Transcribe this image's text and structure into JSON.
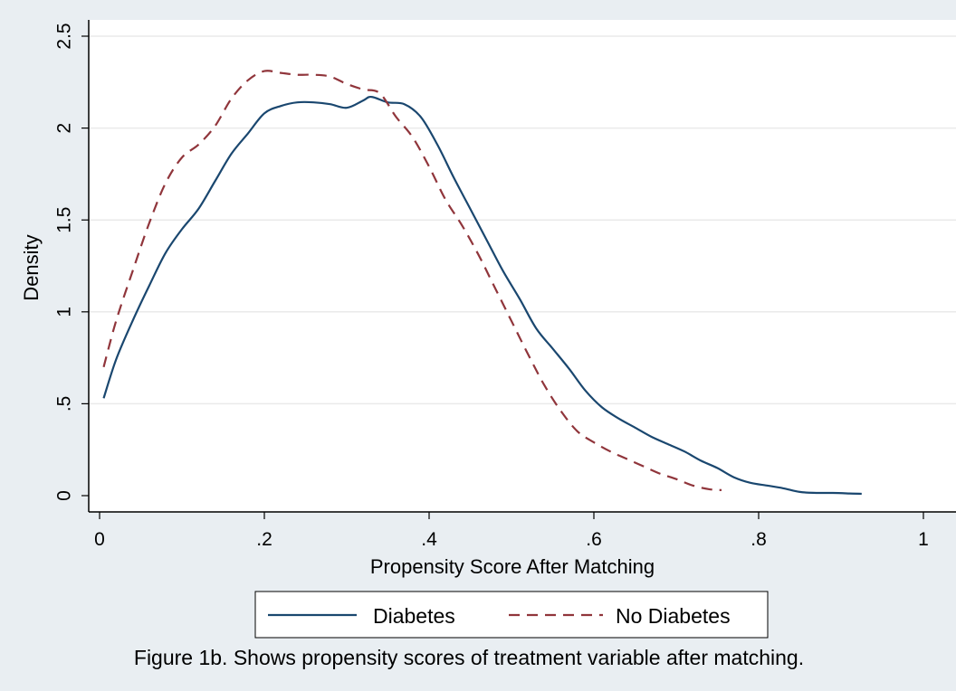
{
  "caption": "Figure 1b. Shows propensity scores of treatment variable after matching.",
  "chart_data": {
    "type": "line",
    "title": "",
    "xlabel": "Propensity Score After Matching",
    "ylabel": "Density",
    "xlim": [
      0,
      1
    ],
    "ylim": [
      0,
      2.5
    ],
    "x_ticks": [
      0,
      0.2,
      0.4,
      0.6,
      0.8,
      1
    ],
    "x_tick_labels": [
      "0",
      ".2",
      ".4",
      ".6",
      ".8",
      "1"
    ],
    "y_ticks": [
      0,
      0.5,
      1,
      1.5,
      2,
      2.5
    ],
    "y_tick_labels": [
      "0",
      ".5",
      "1",
      "1.5",
      "2",
      "2.5"
    ],
    "grid": "horizontal",
    "legend_position": "bottom",
    "colors": {
      "background": "#e9eef2",
      "plot_background": "#ffffff",
      "grid": "#eaeaea"
    },
    "series": [
      {
        "name": "Diabetes",
        "color": "#1a476f",
        "dash": "solid",
        "points": [
          [
            0.005,
            0.53
          ],
          [
            0.02,
            0.74
          ],
          [
            0.04,
            0.95
          ],
          [
            0.06,
            1.14
          ],
          [
            0.08,
            1.32
          ],
          [
            0.1,
            1.45
          ],
          [
            0.12,
            1.56
          ],
          [
            0.14,
            1.71
          ],
          [
            0.16,
            1.86
          ],
          [
            0.18,
            1.97
          ],
          [
            0.2,
            2.08
          ],
          [
            0.22,
            2.12
          ],
          [
            0.24,
            2.14
          ],
          [
            0.26,
            2.14
          ],
          [
            0.28,
            2.13
          ],
          [
            0.3,
            2.11
          ],
          [
            0.32,
            2.15
          ],
          [
            0.33,
            2.17
          ],
          [
            0.35,
            2.14
          ],
          [
            0.37,
            2.13
          ],
          [
            0.39,
            2.06
          ],
          [
            0.41,
            1.91
          ],
          [
            0.43,
            1.73
          ],
          [
            0.45,
            1.56
          ],
          [
            0.47,
            1.39
          ],
          [
            0.49,
            1.22
          ],
          [
            0.51,
            1.07
          ],
          [
            0.53,
            0.91
          ],
          [
            0.55,
            0.8
          ],
          [
            0.57,
            0.69
          ],
          [
            0.59,
            0.57
          ],
          [
            0.61,
            0.48
          ],
          [
            0.63,
            0.42
          ],
          [
            0.65,
            0.37
          ],
          [
            0.67,
            0.32
          ],
          [
            0.69,
            0.28
          ],
          [
            0.71,
            0.24
          ],
          [
            0.73,
            0.19
          ],
          [
            0.75,
            0.15
          ],
          [
            0.77,
            0.1
          ],
          [
            0.79,
            0.07
          ],
          [
            0.81,
            0.055
          ],
          [
            0.83,
            0.04
          ],
          [
            0.85,
            0.02
          ],
          [
            0.87,
            0.015
          ],
          [
            0.89,
            0.015
          ],
          [
            0.91,
            0.012
          ],
          [
            0.925,
            0.01
          ]
        ]
      },
      {
        "name": "No Diabetes",
        "color": "#90353b",
        "dash": "dashed",
        "points": [
          [
            0.005,
            0.7
          ],
          [
            0.02,
            0.95
          ],
          [
            0.04,
            1.22
          ],
          [
            0.06,
            1.48
          ],
          [
            0.08,
            1.7
          ],
          [
            0.1,
            1.84
          ],
          [
            0.12,
            1.91
          ],
          [
            0.14,
            2.01
          ],
          [
            0.16,
            2.16
          ],
          [
            0.18,
            2.26
          ],
          [
            0.2,
            2.31
          ],
          [
            0.22,
            2.3
          ],
          [
            0.24,
            2.29
          ],
          [
            0.26,
            2.29
          ],
          [
            0.28,
            2.28
          ],
          [
            0.3,
            2.24
          ],
          [
            0.32,
            2.21
          ],
          [
            0.34,
            2.19
          ],
          [
            0.36,
            2.06
          ],
          [
            0.38,
            1.95
          ],
          [
            0.4,
            1.79
          ],
          [
            0.42,
            1.61
          ],
          [
            0.44,
            1.47
          ],
          [
            0.46,
            1.31
          ],
          [
            0.48,
            1.13
          ],
          [
            0.5,
            0.95
          ],
          [
            0.52,
            0.77
          ],
          [
            0.54,
            0.6
          ],
          [
            0.56,
            0.46
          ],
          [
            0.58,
            0.35
          ],
          [
            0.6,
            0.29
          ],
          [
            0.62,
            0.24
          ],
          [
            0.64,
            0.2
          ],
          [
            0.66,
            0.16
          ],
          [
            0.68,
            0.12
          ],
          [
            0.7,
            0.09
          ],
          [
            0.72,
            0.055
          ],
          [
            0.74,
            0.035
          ],
          [
            0.755,
            0.03
          ]
        ]
      }
    ]
  }
}
